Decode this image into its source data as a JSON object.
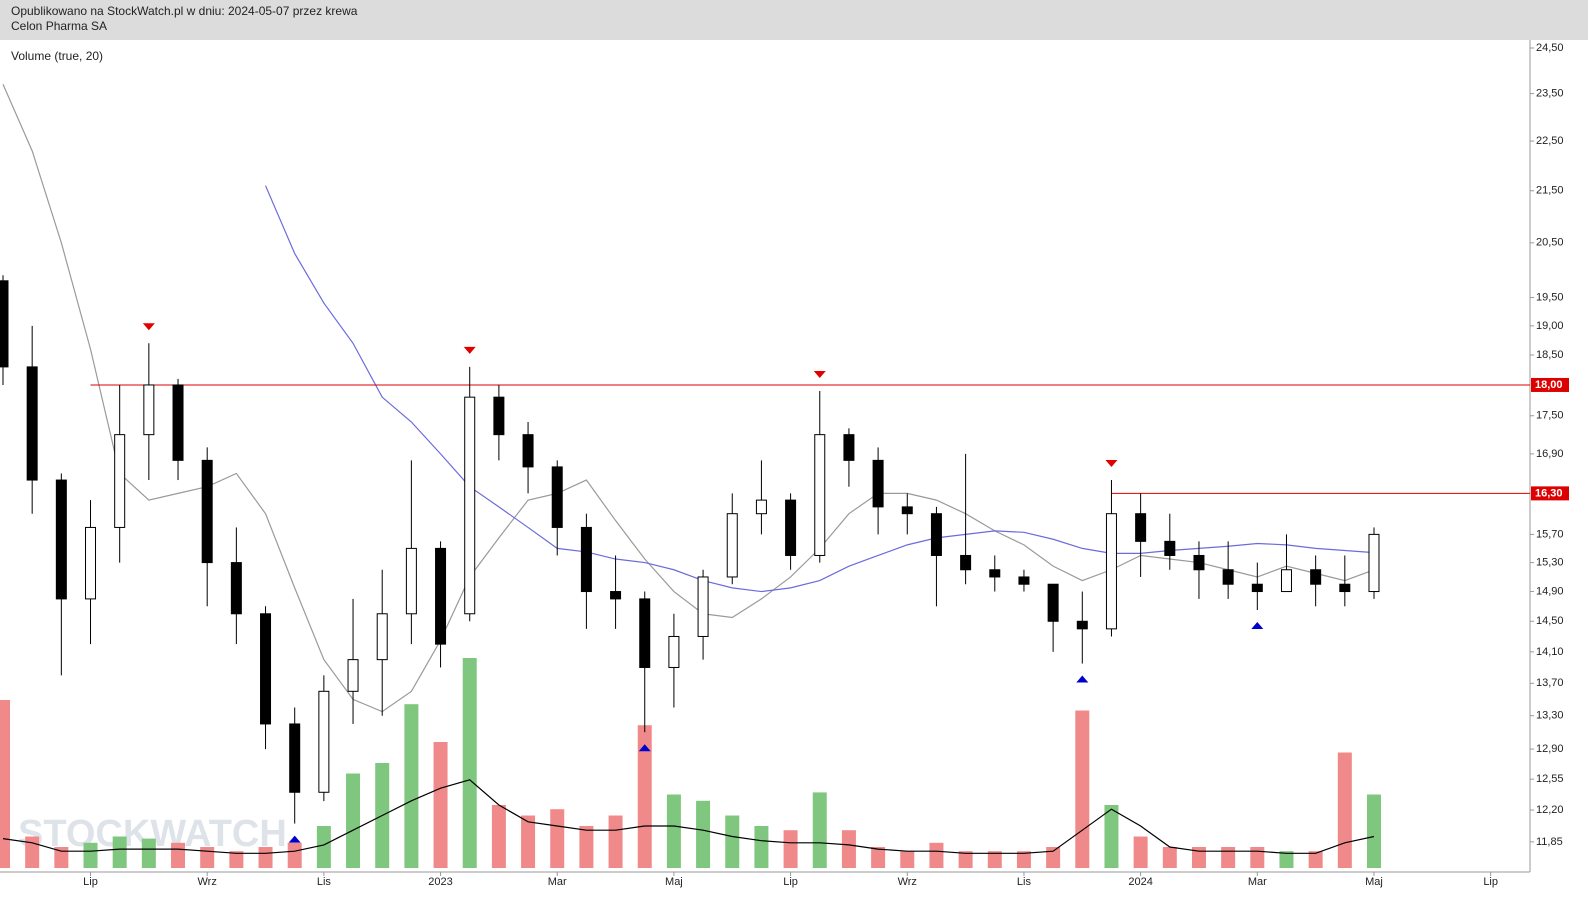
{
  "chart_data": {
    "type": "candlestick",
    "header": "Opublikowano na StockWatch.pl w dniu: 2024-05-07 przez krewa",
    "title": "Celon Pharma SA",
    "indicator_label": "Volume (true, 20)",
    "watermark": "STOCKWATCH",
    "categories": [
      null,
      null,
      null,
      "Lip",
      null,
      null,
      null,
      "Wrz",
      null,
      null,
      null,
      "Lis",
      null,
      null,
      null,
      "2023",
      null,
      null,
      null,
      "Mar",
      null,
      null,
      null,
      "Maj",
      null,
      null,
      null,
      "Lip",
      null,
      null,
      null,
      "Wrz",
      null,
      null,
      null,
      "Lis",
      null,
      null,
      null,
      "2024",
      null,
      null,
      null,
      "Mar",
      null,
      null,
      null,
      "Maj",
      null,
      null,
      null,
      "Lip"
    ],
    "open": [
      19.8,
      18.3,
      16.5,
      14.8,
      15.8,
      17.2,
      18.0,
      16.8,
      15.3,
      14.6,
      13.2,
      12.4,
      13.6,
      14.0,
      14.6,
      15.5,
      14.6,
      17.8,
      17.2,
      16.7,
      15.8,
      14.9,
      14.8,
      13.9,
      14.3,
      15.1,
      16.0,
      16.2,
      15.4,
      17.2,
      16.8,
      16.1,
      16.0,
      15.4,
      15.2,
      15.1,
      15.0,
      14.5,
      14.4,
      16.0,
      15.6,
      15.4,
      15.2,
      15.0,
      14.9,
      15.2,
      15.0,
      14.9,
      null,
      null,
      null,
      null
    ],
    "high": [
      19.9,
      19.0,
      16.6,
      16.2,
      18.0,
      18.7,
      18.1,
      17.0,
      15.8,
      14.7,
      13.4,
      13.8,
      14.8,
      15.2,
      16.8,
      15.6,
      18.3,
      18.0,
      17.4,
      16.8,
      16.0,
      15.4,
      14.9,
      14.6,
      15.2,
      16.3,
      16.8,
      16.3,
      17.9,
      17.3,
      17.0,
      16.3,
      16.1,
      16.9,
      15.4,
      15.2,
      15.0,
      14.9,
      16.5,
      16.3,
      16.0,
      15.6,
      15.6,
      15.3,
      15.7,
      15.4,
      15.4,
      15.8,
      null,
      null,
      null,
      null
    ],
    "low": [
      18.0,
      16.0,
      13.8,
      14.2,
      15.3,
      16.5,
      16.5,
      14.7,
      14.2,
      12.9,
      12.05,
      12.3,
      13.2,
      13.3,
      14.2,
      13.9,
      14.5,
      16.8,
      16.3,
      15.4,
      14.4,
      14.4,
      13.1,
      13.4,
      14.0,
      15.0,
      15.7,
      15.2,
      15.3,
      16.4,
      15.7,
      15.7,
      14.7,
      15.0,
      14.9,
      14.9,
      14.1,
      13.95,
      14.3,
      15.1,
      15.2,
      14.8,
      14.8,
      14.65,
      14.9,
      14.7,
      14.7,
      14.8,
      null,
      null,
      null,
      null
    ],
    "close": [
      18.3,
      16.5,
      14.8,
      15.8,
      17.2,
      18.0,
      16.8,
      15.3,
      14.6,
      13.2,
      12.4,
      13.6,
      14.0,
      14.6,
      15.5,
      14.2,
      17.8,
      17.2,
      16.7,
      15.8,
      14.9,
      14.8,
      13.9,
      14.3,
      15.1,
      16.0,
      16.2,
      15.4,
      17.2,
      16.8,
      16.1,
      16.0,
      15.4,
      15.2,
      15.1,
      15.0,
      14.5,
      14.4,
      16.0,
      15.6,
      15.4,
      15.2,
      15.0,
      14.9,
      15.2,
      15.0,
      14.9,
      15.7,
      null,
      null,
      null,
      null
    ],
    "overlays": [
      {
        "color": "#9a9a9a",
        "values": [
          23.7,
          22.3,
          20.5,
          18.6,
          16.6,
          16.2,
          16.3,
          16.4,
          16.6,
          16.0,
          14.95,
          14.0,
          13.5,
          13.35,
          13.6,
          14.25,
          15.1,
          15.65,
          16.2,
          16.3,
          16.5,
          15.9,
          15.35,
          14.9,
          14.6,
          14.55,
          14.8,
          15.1,
          15.5,
          16.0,
          16.3,
          16.3,
          16.2,
          16.0,
          15.75,
          15.55,
          15.25,
          15.05,
          15.2,
          15.4,
          15.35,
          15.3,
          15.2,
          15.1,
          15.25,
          15.15,
          15.05,
          15.2,
          null,
          null,
          null,
          null
        ]
      },
      {
        "color": "#6b6bdc",
        "values": [
          null,
          null,
          null,
          null,
          null,
          null,
          null,
          null,
          null,
          21.6,
          20.3,
          19.4,
          18.7,
          17.8,
          17.4,
          16.9,
          16.4,
          16.1,
          15.8,
          15.5,
          15.45,
          15.35,
          15.3,
          15.2,
          15.05,
          14.95,
          14.9,
          14.95,
          15.05,
          15.25,
          15.4,
          15.55,
          15.65,
          15.7,
          15.75,
          15.73,
          15.63,
          15.5,
          15.43,
          15.43,
          15.47,
          15.5,
          15.53,
          15.57,
          15.55,
          15.5,
          15.47,
          15.44,
          null,
          null,
          null,
          null
        ]
      }
    ],
    "volume": {
      "lim": [
        0,
        100
      ],
      "up_color": "#7fc77f",
      "down_color": "#f08a8a",
      "ma_color": "#000000",
      "values": [
        80,
        15,
        10,
        12,
        15,
        14,
        12,
        10,
        8,
        10,
        12,
        20,
        45,
        50,
        78,
        60,
        100,
        30,
        25,
        28,
        20,
        25,
        68,
        35,
        32,
        25,
        20,
        18,
        36,
        18,
        10,
        8,
        12,
        8,
        8,
        8,
        10,
        75,
        30,
        15,
        10,
        10,
        10,
        10,
        8,
        8,
        55,
        35,
        null,
        null,
        null,
        null
      ],
      "ma": [
        14,
        12,
        8,
        8,
        9,
        9,
        9,
        8,
        7,
        7,
        8,
        11,
        18,
        25,
        32,
        38,
        42,
        30,
        22,
        20,
        18,
        18,
        20,
        20,
        18,
        15,
        13,
        12,
        12,
        11,
        9,
        8,
        8,
        7,
        7,
        7,
        8,
        18,
        28,
        20,
        10,
        8,
        8,
        8,
        7,
        7,
        12,
        15,
        null,
        null,
        null,
        null
      ]
    },
    "log": true,
    "ylim": [
      11.57,
      24.68
    ],
    "yticks": [
      {
        "value": 24.5,
        "label": "24,50"
      },
      {
        "value": 23.5,
        "label": "23,50"
      },
      {
        "value": 22.5,
        "label": "22,50"
      },
      {
        "value": 21.5,
        "label": "21,50"
      },
      {
        "value": 20.5,
        "label": "20,50"
      },
      {
        "value": 19.5,
        "label": "19,50"
      },
      {
        "value": 19.0,
        "label": "19,00"
      },
      {
        "value": 18.5,
        "label": "18,50"
      },
      {
        "value": 17.5,
        "label": "17,50"
      },
      {
        "value": 16.9,
        "label": "16,90"
      },
      {
        "value": 15.7,
        "label": "15,70"
      },
      {
        "value": 15.3,
        "label": "15,30"
      },
      {
        "value": 14.9,
        "label": "14,90"
      },
      {
        "value": 14.5,
        "label": "14,50"
      },
      {
        "value": 14.1,
        "label": "14,10"
      },
      {
        "value": 13.7,
        "label": "13,70"
      },
      {
        "value": 13.3,
        "label": "13,30"
      },
      {
        "value": 12.9,
        "label": "12,90"
      },
      {
        "value": 12.55,
        "label": "12,55"
      },
      {
        "value": 12.2,
        "label": "12,20"
      },
      {
        "value": 11.85,
        "label": "11,85"
      }
    ],
    "levels": [
      {
        "value": 18.0,
        "label": "18,00",
        "start_index": 3,
        "color": "#dd0000"
      },
      {
        "value": 16.3,
        "label": "16,30",
        "start_index": 38,
        "color": "#dd0000"
      }
    ],
    "peaks": [
      5,
      16,
      28,
      38
    ],
    "troughs": [
      10,
      22,
      37,
      43
    ],
    "peak_color": "#e00000",
    "trough_color": "#0000cc"
  }
}
